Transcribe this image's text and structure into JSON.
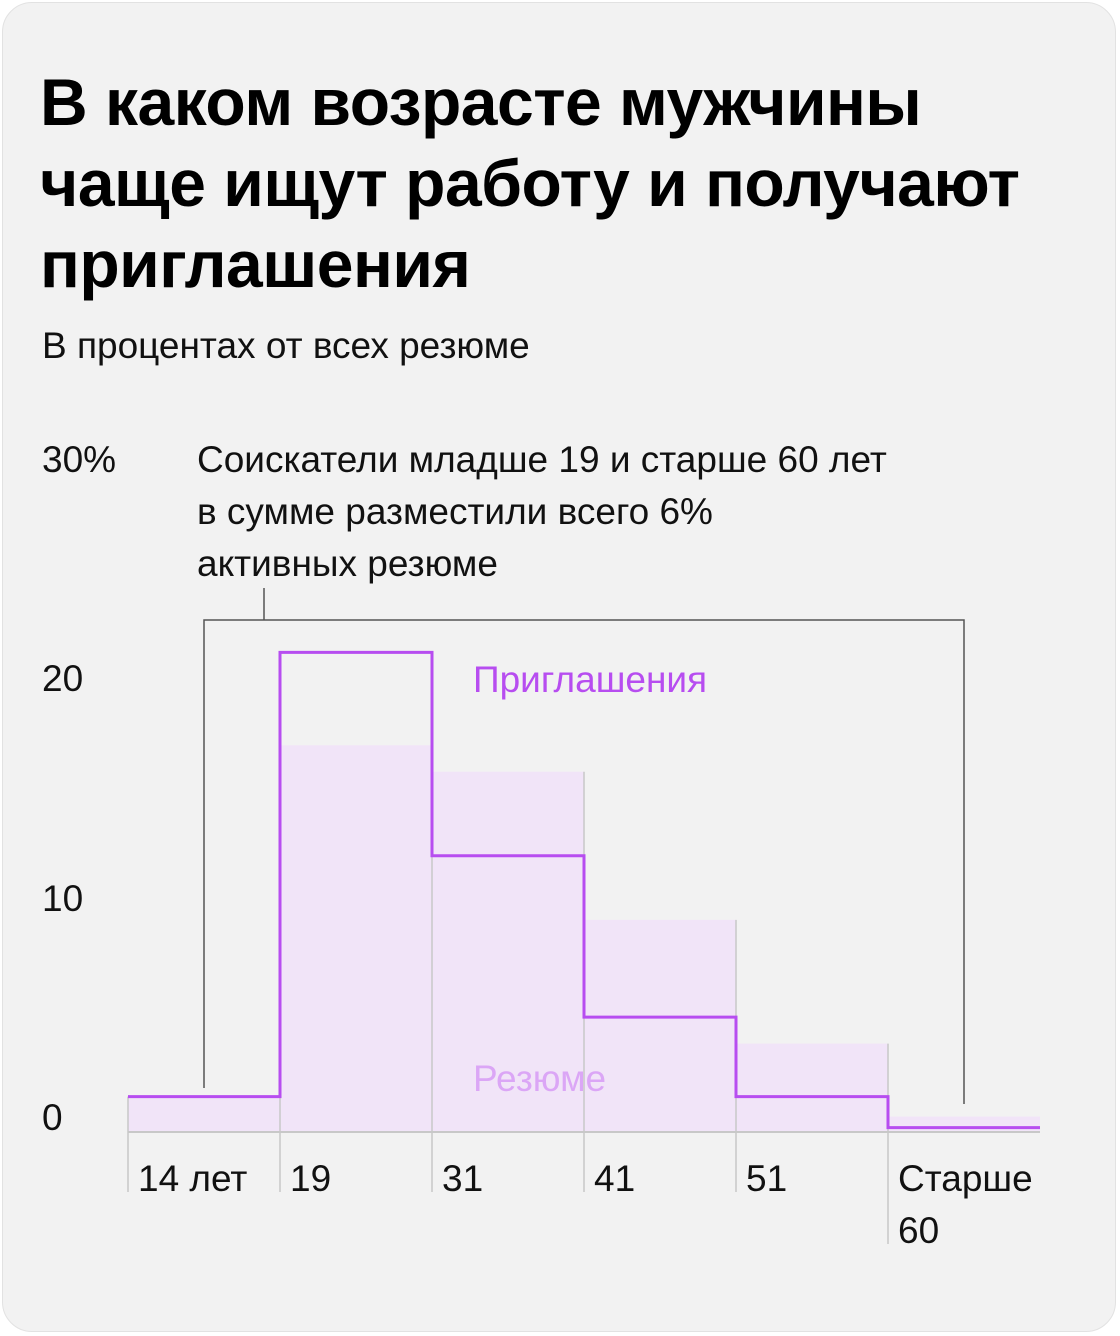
{
  "title": "В каком возрасте мужчины чаще ищут работу и получают приглашения",
  "subtitle": "В процентах от всех резюме",
  "colors": {
    "resume_fill": "#f1e4f8",
    "resume_label": "#dba6f6",
    "invites": "#b74df0",
    "grid": "#c8c8c8",
    "bracket": "#555555"
  },
  "chart_data": {
    "type": "bar",
    "categories": [
      "14 лет",
      "19",
      "31",
      "41",
      "51",
      "Старше 60"
    ],
    "y_ticks": [
      "0",
      "10",
      "20",
      "30%"
    ],
    "ylim": [
      0,
      30
    ],
    "series": [
      {
        "name": "Резюме",
        "style": "filled bars",
        "values": [
          1.6,
          17.5,
          16.3,
          9.6,
          4.0,
          0.7
        ]
      },
      {
        "name": "Приглашения",
        "style": "step outline",
        "values": [
          1.6,
          21.7,
          12.5,
          5.2,
          1.6,
          0.2
        ]
      }
    ],
    "annotation": {
      "lines": [
        "Соискатели младше 19 и старше 60 лет",
        "в сумме разместили всего 6%",
        "активных резюме"
      ]
    }
  }
}
